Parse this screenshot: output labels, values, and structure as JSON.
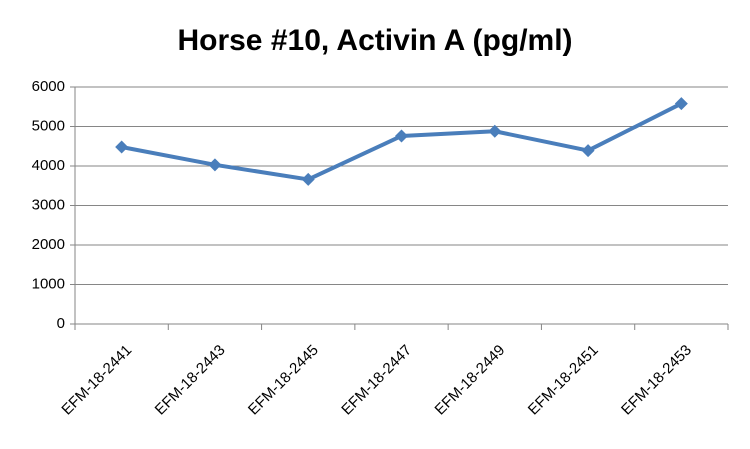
{
  "chart_data": {
    "type": "line",
    "title": "Horse #10, Activin A (pg/ml)",
    "categories": [
      "EFM-18-2441",
      "EFM-18-2443",
      "EFM-18-2445",
      "EFM-18-2447",
      "EFM-18-2449",
      "EFM-18-2451",
      "EFM-18-2453"
    ],
    "series": [
      {
        "name": "Activin A",
        "color": "#4a7ebb",
        "values": [
          4480,
          4030,
          3660,
          4760,
          4880,
          4390,
          5580
        ]
      }
    ],
    "ylim": [
      0,
      6000
    ],
    "yticks": [
      0,
      1000,
      2000,
      3000,
      4000,
      5000,
      6000
    ],
    "grid": true
  }
}
